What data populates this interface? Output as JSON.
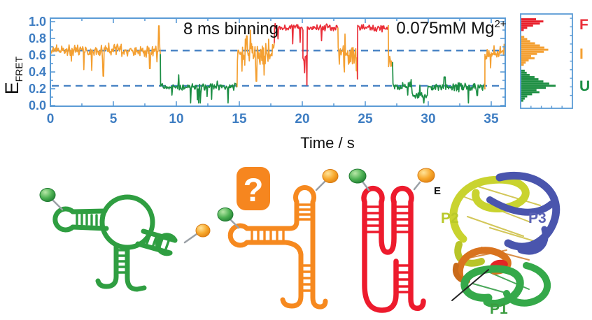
{
  "figure": {
    "annotations": {
      "binning": "8 ms binning",
      "mg": "0.075mM Mg",
      "mg_sup": "2+",
      "time_axis_label": "Time / s",
      "efret_main": "E",
      "efret_sub": "FRET",
      "question_mark": "?",
      "acceptor_label": "E"
    },
    "p_labels": {
      "p1": {
        "label": "P1",
        "color": "#3a9c3f"
      },
      "p2": {
        "label": "P2",
        "color": "#b9c829"
      },
      "p3": {
        "label": "P3",
        "color": "#5a62b5"
      }
    },
    "diagram_colors": {
      "unfolded_green": "#2f9e41",
      "intermediate_orange": "#f6891f",
      "folded_red": "#ed1b2d"
    }
  },
  "chart_data": {
    "type": "line",
    "xlabel": "Time / s",
    "ylabel": "EFRET",
    "xlim": [
      0,
      36.1
    ],
    "ylim": [
      0,
      1.05
    ],
    "x_major_ticks": [
      0,
      5,
      10,
      15,
      20,
      25,
      30,
      35
    ],
    "x_minor_step": 2.5,
    "y_major_ticks": [
      "0.0",
      "0.2",
      "0.4",
      "0.6",
      "0.8",
      "1.0"
    ],
    "y_minor_step": 0.1,
    "axis_color": "#5b9bd5",
    "label_color": "#3e7dc2",
    "dashed_levels": [
      0.655,
      0.235
    ],
    "dashed_color": "#3f7dc1",
    "dt": 0.045,
    "states": {
      "F": {
        "label": "F",
        "color": "#ea2e38",
        "mean_fret": 0.93
      },
      "I": {
        "label": "I",
        "color": "#f4a032",
        "mean_fret": 0.65
      },
      "U": {
        "label": "U",
        "color": "#1b8e44",
        "mean_fret": 0.22
      }
    },
    "segments": [
      {
        "t0": 0.0,
        "t1": 8.75,
        "state": "I",
        "mean": 0.655,
        "noise": 0.05
      },
      {
        "t0": 8.75,
        "t1": 14.85,
        "state": "U",
        "mean": 0.225,
        "noise": 0.028
      },
      {
        "t0": 14.85,
        "t1": 17.8,
        "state": "I",
        "mean": 0.615,
        "noise": 0.085
      },
      {
        "t0": 17.8,
        "t1": 20.05,
        "state": "F",
        "mean": 0.935,
        "noise": 0.03
      },
      {
        "t0": 20.05,
        "t1": 20.4,
        "state": "F",
        "mean": 0.56,
        "noise": 0.07
      },
      {
        "t0": 20.4,
        "t1": 22.85,
        "state": "F",
        "mean": 0.93,
        "noise": 0.03
      },
      {
        "t0": 22.85,
        "t1": 24.4,
        "state": "I",
        "mean": 0.6,
        "noise": 0.09
      },
      {
        "t0": 24.4,
        "t1": 26.85,
        "state": "F",
        "mean": 0.925,
        "noise": 0.03
      },
      {
        "t0": 26.85,
        "t1": 27.2,
        "state": "I",
        "mean": 0.52,
        "noise": 0.06
      },
      {
        "t0": 27.2,
        "t1": 28.75,
        "state": "U",
        "mean": 0.23,
        "noise": 0.033
      },
      {
        "t0": 28.75,
        "t1": 29.95,
        "state": "U",
        "mean": 0.115,
        "noise": 0.028
      },
      {
        "t0": 29.95,
        "t1": 34.5,
        "state": "U",
        "mean": 0.22,
        "noise": 0.033
      },
      {
        "t0": 34.5,
        "t1": 36.05,
        "state": "I",
        "mean": 0.63,
        "noise": 0.05
      }
    ],
    "spikes": [
      {
        "t": 4.2,
        "v": 0.35
      },
      {
        "t": 7.9,
        "v": 0.44
      },
      {
        "t": 8.6,
        "v": 0.95
      },
      {
        "t": 15.6,
        "v": 0.83
      },
      {
        "t": 16.35,
        "v": 0.29
      },
      {
        "t": 31.3,
        "v": 0.34
      },
      {
        "t": 33.9,
        "v": 0.12
      }
    ],
    "histogram": {
      "orientation": "horizontal",
      "bin_e_step": 0.025,
      "blocks": [
        {
          "state": "F",
          "color": "#e8202c",
          "e_top": 1.0,
          "values": [
            0.3,
            0.45,
            0.38,
            0.24,
            0.12,
            0.05
          ]
        },
        {
          "state": "I",
          "color": "#f4a032",
          "e_top": 0.795,
          "values": [
            0.06,
            0.12,
            0.18,
            0.28,
            0.38,
            0.47,
            0.55,
            0.46,
            0.32,
            0.2,
            0.27,
            0.15,
            0.09,
            0.05
          ]
        },
        {
          "state": "U",
          "color": "#1e8f43",
          "e_top": 0.4,
          "values": [
            0.07,
            0.11,
            0.17,
            0.27,
            0.35,
            0.45,
            0.57,
            0.7,
            0.5,
            0.31,
            0.37,
            0.22,
            0.12,
            0.07,
            0.04
          ]
        }
      ]
    }
  }
}
